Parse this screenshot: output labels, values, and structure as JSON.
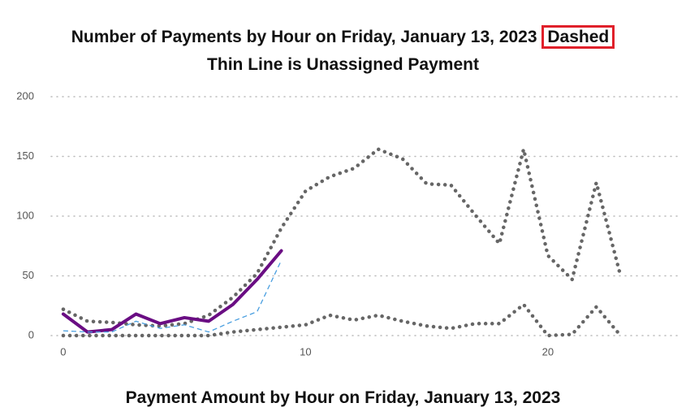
{
  "chart_data": {
    "type": "line",
    "title": "Number of Payments by Hour on Friday, January 13, 2023",
    "title_highlight": "Dashed",
    "subtitle": "Thin Line is Unassigned Payment",
    "caption": "Payment Amount by Hour on Friday, January 13, 2023",
    "x": [
      0,
      1,
      2,
      3,
      4,
      5,
      6,
      7,
      8,
      9,
      10,
      11,
      12,
      13,
      14,
      15,
      16,
      17,
      18,
      19,
      20,
      21,
      22,
      23
    ],
    "xlim": [
      -0.5,
      25.5
    ],
    "xticks": [
      0,
      10,
      20
    ],
    "ylim": [
      0,
      200
    ],
    "yticks": [
      0,
      50,
      100,
      150,
      200
    ],
    "grid": true,
    "series": [
      {
        "color": "#666666",
        "line_style": "dotted",
        "values": [
          22,
          12,
          11,
          9,
          8,
          10,
          17,
          32,
          52,
          90,
          121,
          133,
          140,
          156,
          148,
          127,
          126,
          101,
          77,
          156,
          67,
          47,
          128,
          50
        ]
      },
      {
        "color": "#666666",
        "line_style": "dotted",
        "values": [
          0,
          0,
          0,
          0,
          0,
          0,
          0,
          3,
          5,
          7,
          9,
          17,
          13,
          17,
          12,
          8,
          6,
          10,
          10,
          26,
          0,
          1,
          24,
          0
        ]
      },
      {
        "color": "#6a0d83",
        "line_style": "solid",
        "values": [
          18,
          3,
          5,
          18,
          10,
          15,
          12,
          26,
          47,
          71,
          null,
          null,
          null,
          null,
          null,
          null,
          null,
          null,
          null,
          null,
          null,
          null,
          null,
          null
        ]
      },
      {
        "color": "#4a9fe0",
        "line_style": "dashed",
        "values": [
          4,
          3,
          3,
          12,
          6,
          9,
          3,
          12,
          20,
          63,
          null,
          null,
          null,
          null,
          null,
          null,
          null,
          null,
          null,
          null,
          null,
          null,
          null,
          null
        ]
      }
    ]
  }
}
